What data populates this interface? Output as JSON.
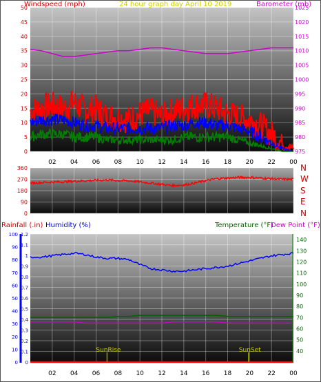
{
  "header": {
    "left_label": "Windspeed (mph)",
    "center_label": "24 hour graph day   April 10 2019",
    "right_label": "Barometer (mb)"
  },
  "direction_labels": [
    "N",
    "W",
    "S",
    "E",
    "N"
  ],
  "bottom_labels": {
    "rainfall": "Rainfall (.in)",
    "humidity": "Humidity (%)",
    "temperature": "Temperature (°F)",
    "dewpoint": "Dew Point (°F)"
  },
  "colors": {
    "wind_gust": "#ff0000",
    "wind_avg": "#0000ff",
    "wind_low": "#008000",
    "barometer": "#cc00cc",
    "direction": "#ff0000",
    "humidity": "#0000ff",
    "temperature": "#006400",
    "dewpoint": "#cc00cc",
    "rainfall": "#ff0000",
    "sun_markers": "#999900"
  },
  "chart_data": [
    {
      "type": "line",
      "title": "24 hour graph day   April 10 2019",
      "xlabel": "",
      "ylabel": "Windspeed (mph)",
      "y2label": "Barometer (mb)",
      "x_ticks": [
        "02",
        "04",
        "06",
        "08",
        "10",
        "12",
        "14",
        "16",
        "18",
        "20",
        "22",
        "00"
      ],
      "ylim": [
        0,
        50
      ],
      "y_ticks": [
        0,
        5,
        10,
        15,
        20,
        25,
        30,
        35,
        40,
        45,
        50
      ],
      "y2lim": [
        975,
        1025
      ],
      "y2_ticks": [
        975,
        980,
        985,
        990,
        995,
        1000,
        1005,
        1010,
        1015,
        1020,
        1025
      ],
      "grid": true,
      "x_hours": [
        0,
        1,
        2,
        3,
        4,
        5,
        6,
        7,
        8,
        9,
        10,
        11,
        12,
        13,
        14,
        15,
        16,
        17,
        18,
        19,
        20,
        21,
        22,
        23,
        24
      ],
      "series": [
        {
          "axis": "left",
          "values": [
            14,
            15,
            16,
            15,
            17,
            14,
            15,
            12,
            12,
            11,
            13,
            14,
            12,
            14,
            15,
            16,
            16,
            15,
            13,
            12,
            11,
            9,
            6,
            3,
            1
          ]
        },
        {
          "axis": "left",
          "values": [
            10,
            11,
            11,
            11,
            10,
            9,
            9,
            8,
            8,
            8,
            8,
            8,
            8,
            9,
            9,
            10,
            10,
            9,
            9,
            8,
            7,
            5,
            3,
            1,
            0
          ]
        },
        {
          "axis": "left",
          "values": [
            5,
            6,
            6,
            6,
            5,
            5,
            5,
            4,
            4,
            4,
            4,
            4,
            4,
            4,
            5,
            5,
            5,
            5,
            5,
            4,
            3,
            2,
            1,
            0,
            0
          ]
        },
        {
          "axis": "right",
          "values": [
            1010.5,
            1010,
            1009,
            1008,
            1008,
            1008.5,
            1009,
            1009.5,
            1010,
            1010,
            1010.5,
            1011,
            1011,
            1010.5,
            1010,
            1009.5,
            1009,
            1009,
            1009,
            1009.5,
            1010,
            1010.5,
            1011,
            1011,
            1011
          ]
        }
      ]
    },
    {
      "type": "line",
      "ylabel": "",
      "ylim": [
        0,
        360
      ],
      "y_ticks": [
        0,
        90,
        180,
        270,
        360
      ],
      "y_tick_labels": [
        "0",
        "90",
        "180",
        "270",
        "360"
      ],
      "grid": true,
      "x_hours": [
        0,
        1,
        2,
        3,
        4,
        5,
        6,
        7,
        8,
        9,
        10,
        11,
        12,
        13,
        14,
        15,
        16,
        17,
        18,
        19,
        20,
        21,
        22,
        23,
        24
      ],
      "series": [
        {
          "values": [
            240,
            245,
            248,
            250,
            255,
            258,
            262,
            265,
            260,
            258,
            250,
            240,
            230,
            220,
            225,
            240,
            260,
            275,
            280,
            285,
            285,
            280,
            275,
            270,
            270
          ]
        }
      ]
    },
    {
      "type": "line",
      "xlabel": "",
      "x_ticks": [
        "02",
        "04",
        "06",
        "08",
        "10",
        "12",
        "14",
        "16",
        "18",
        "20",
        "22",
        "00"
      ],
      "annotations": [
        "SunRise",
        "SunSet"
      ],
      "sunrise_hour": 7,
      "sunset_hour": 19.9,
      "rain_axis": {
        "ylim": [
          0,
          1.2
        ],
        "ticks": [
          0,
          0.1,
          0.2,
          0.3,
          0.4,
          0.5,
          0.6,
          0.7,
          0.8,
          0.9,
          1,
          1.1,
          1.2
        ]
      },
      "humidity_axis": {
        "ylim": [
          0,
          100
        ],
        "ticks": [
          0,
          10,
          20,
          30,
          40,
          50,
          60,
          70,
          80,
          90,
          100
        ]
      },
      "temp_axis": {
        "ylim": [
          30,
          145
        ],
        "ticks": [
          40,
          50,
          60,
          70,
          80,
          90,
          100,
          110,
          120,
          130,
          140
        ]
      },
      "grid": true,
      "x_hours": [
        0,
        1,
        2,
        3,
        4,
        5,
        6,
        7,
        8,
        9,
        10,
        11,
        12,
        13,
        14,
        15,
        16,
        17,
        18,
        19,
        20,
        21,
        22,
        23,
        24
      ],
      "series": [
        {
          "axis": "humidity",
          "values": [
            82,
            82,
            83,
            84,
            85,
            84,
            82,
            81,
            81,
            80,
            76,
            73,
            72,
            71,
            71,
            72,
            73,
            74,
            75,
            77,
            79,
            81,
            83,
            84,
            85
          ]
        },
        {
          "axis": "temp",
          "values": [
            70,
            70,
            70,
            70,
            70,
            70,
            70,
            70,
            71,
            71,
            72,
            72,
            72,
            72,
            72,
            72,
            72,
            72,
            71,
            71,
            71,
            71,
            71,
            71,
            71
          ]
        },
        {
          "axis": "temp",
          "values": [
            66,
            66,
            66,
            66,
            66,
            65,
            65,
            65,
            65,
            65,
            65,
            65,
            65,
            66,
            66,
            66,
            66,
            66,
            65,
            65,
            65,
            65,
            65,
            65,
            65
          ]
        },
        {
          "axis": "rain",
          "values": [
            0,
            0,
            0,
            0,
            0,
            0,
            0,
            0,
            0,
            0,
            0,
            0,
            0,
            0,
            0,
            0,
            0,
            0,
            0,
            0,
            0,
            0,
            0,
            0,
            0
          ]
        }
      ]
    }
  ]
}
